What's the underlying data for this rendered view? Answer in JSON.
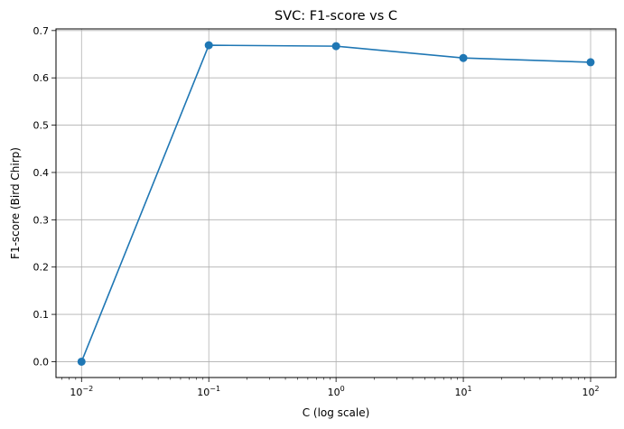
{
  "chart_data": {
    "type": "line",
    "title": "SVC: F1-score vs C",
    "xlabel": "C (log scale)",
    "ylabel": "F1-score (Bird Chirp)",
    "x_scale": "log",
    "x": [
      0.01,
      0.1,
      1,
      10,
      100
    ],
    "x_ticks": [
      {
        "value": 0.01,
        "base": "10",
        "exp": "−2"
      },
      {
        "value": 0.1,
        "base": "10",
        "exp": "−1"
      },
      {
        "value": 1,
        "base": "10",
        "exp": "0"
      },
      {
        "value": 10,
        "base": "10",
        "exp": "1"
      },
      {
        "value": 100,
        "base": "10",
        "exp": "2"
      }
    ],
    "y_ticks": [
      "0.0",
      "0.1",
      "0.2",
      "0.3",
      "0.4",
      "0.5",
      "0.6",
      "0.7"
    ],
    "xlim": [
      0.0063,
      158
    ],
    "ylim": [
      -0.0335,
      0.7035
    ],
    "series": [
      {
        "values": [
          0.0,
          0.669,
          0.667,
          0.642,
          0.633
        ]
      }
    ],
    "grid": true,
    "legend": "none",
    "colors": {
      "line": "#1f77b4",
      "grid": "#b0b0b0"
    }
  }
}
